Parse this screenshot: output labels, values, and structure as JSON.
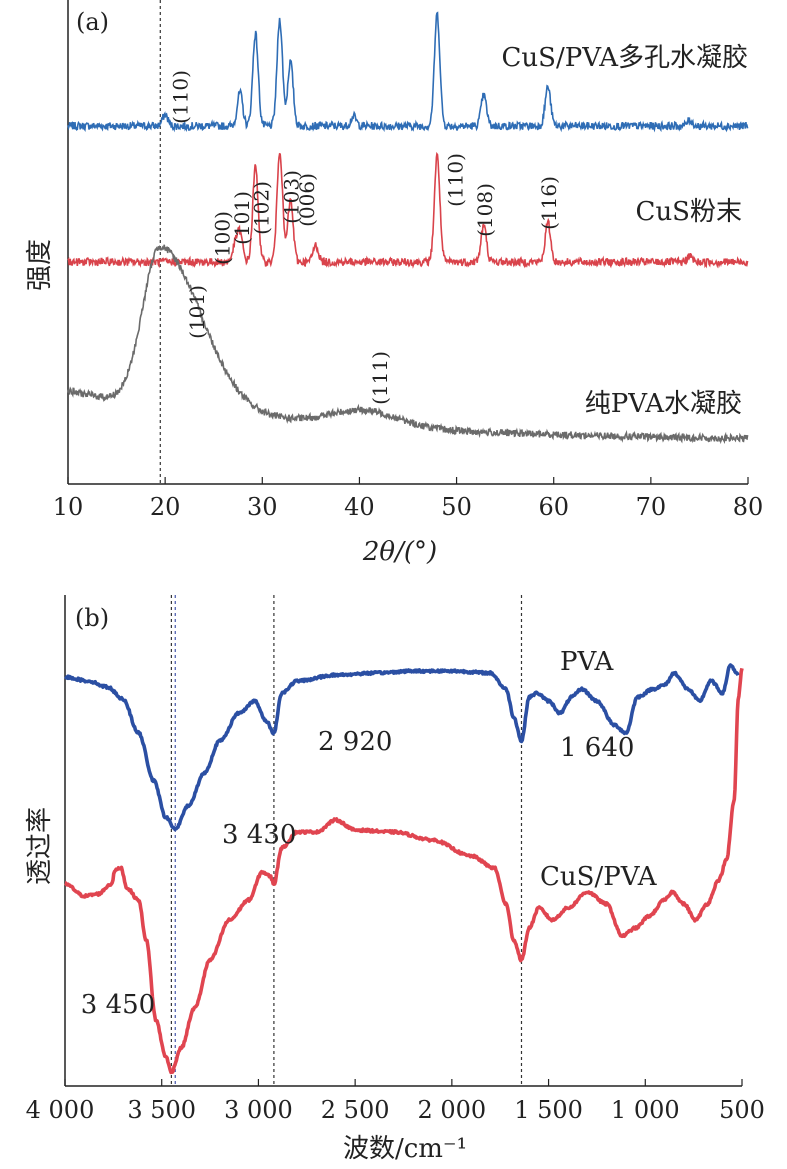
{
  "chart_data": [
    {
      "type": "line",
      "panel_label": "(a)",
      "xlabel": "2θ/(°)",
      "ylabel": "强度",
      "xlim": [
        10,
        80
      ],
      "xticks": [
        10,
        20,
        30,
        40,
        50,
        60,
        70,
        80
      ],
      "yticks_shown": false,
      "reference_lines_x": [
        19.5
      ],
      "series": [
        {
          "name": "CuS/PVA多孔水凝胶",
          "color": "#2f6db5",
          "peaks": [
            [
              20,
              0.4
            ],
            [
              27.7,
              1.2
            ],
            [
              29.3,
              3.3
            ],
            [
              31.8,
              3.8
            ],
            [
              32.9,
              2.3
            ],
            [
              39.4,
              0.35
            ],
            [
              48.0,
              4.0
            ],
            [
              52.8,
              1.1
            ],
            [
              59.4,
              1.4
            ],
            [
              74,
              0.2
            ]
          ],
          "annotations": [
            {
              "label": "(110)",
              "x": 21.5
            }
          ]
        },
        {
          "name": "CuS粉末",
          "color": "#d9434b",
          "peaks": [
            [
              27.2,
              0.55
            ],
            [
              27.7,
              1.0
            ],
            [
              29.3,
              3.4
            ],
            [
              31.8,
              4.0
            ],
            [
              32.9,
              2.2
            ],
            [
              35.5,
              0.6
            ],
            [
              48.0,
              3.8
            ],
            [
              52.8,
              1.3
            ],
            [
              59.4,
              1.4
            ],
            [
              74,
              0.2
            ]
          ],
          "annotations": [
            {
              "label": "(100)",
              "x": 25.8
            },
            {
              "label": "(101)",
              "x": 27.8
            },
            {
              "label": "(102)",
              "x": 29.8
            },
            {
              "label": "(103)",
              "x": 32.9
            },
            {
              "label": "(006)",
              "x": 34.5
            },
            {
              "label": "(110)",
              "x": 49.8
            },
            {
              "label": "(108)",
              "x": 52.8
            },
            {
              "label": "(116)",
              "x": 59.4
            }
          ]
        },
        {
          "name": "纯PVA水凝胶",
          "color": "#6b6b6b",
          "peaks": [
            [
              19.5,
              5.0
            ],
            [
              40.5,
              0.5
            ]
          ],
          "annotations": [
            {
              "label": "(101)",
              "x": 23.2
            },
            {
              "label": "(111)",
              "x": 42.0
            }
          ]
        }
      ]
    },
    {
      "type": "line",
      "panel_label": "(b)",
      "xlabel": "波数/cm⁻¹",
      "ylabel": "透过率",
      "xlim": [
        4000,
        500
      ],
      "xticks": [
        4000,
        3500,
        3000,
        2500,
        2000,
        1500,
        1000,
        500
      ],
      "xtick_labels": [
        "4 000",
        "3 500",
        "3 000",
        "2 500",
        "2 000",
        "1 500",
        "1 000",
        "500"
      ],
      "yticks_shown": false,
      "reference_lines_x": [
        3450,
        3430,
        2920,
        1640
      ],
      "series": [
        {
          "name": "PVA",
          "color": "#2b4fa3",
          "points": [
            [
              4000,
              0.0
            ],
            [
              3880,
              -0.1
            ],
            [
              3780,
              -0.25
            ],
            [
              3700,
              -0.55
            ],
            [
              3620,
              -1.4
            ],
            [
              3540,
              -2.6
            ],
            [
              3480,
              -3.5
            ],
            [
              3430,
              -3.8
            ],
            [
              3360,
              -3.2
            ],
            [
              3280,
              -2.4
            ],
            [
              3200,
              -1.6
            ],
            [
              3100,
              -0.9
            ],
            [
              3020,
              -0.6
            ],
            [
              2960,
              -1.1
            ],
            [
              2920,
              -1.4
            ],
            [
              2880,
              -0.4
            ],
            [
              2800,
              -0.1
            ],
            [
              2600,
              0.05
            ],
            [
              2400,
              0.1
            ],
            [
              2200,
              0.15
            ],
            [
              2000,
              0.15
            ],
            [
              1800,
              0.1
            ],
            [
              1720,
              -0.3
            ],
            [
              1680,
              -1.0
            ],
            [
              1640,
              -1.6
            ],
            [
              1600,
              -0.5
            ],
            [
              1560,
              -0.4
            ],
            [
              1500,
              -0.6
            ],
            [
              1440,
              -0.9
            ],
            [
              1380,
              -0.5
            ],
            [
              1330,
              -0.3
            ],
            [
              1250,
              -0.6
            ],
            [
              1160,
              -1.2
            ],
            [
              1100,
              -1.4
            ],
            [
              1040,
              -0.5
            ],
            [
              960,
              -0.3
            ],
            [
              900,
              -0.2
            ],
            [
              850,
              0.1
            ],
            [
              780,
              -0.3
            ],
            [
              720,
              -0.6
            ],
            [
              660,
              -0.1
            ],
            [
              600,
              -0.4
            ],
            [
              560,
              0.3
            ],
            [
              520,
              0.05
            ]
          ],
          "annotations": [
            {
              "label": "3 430",
              "x": 3430
            },
            {
              "label": "2 920",
              "x": 2920
            },
            {
              "label": "1 640",
              "x": 1640
            }
          ]
        },
        {
          "name": "CuS/PVA",
          "color": "#e04550",
          "points": [
            [
              4000,
              -0.1
            ],
            [
              3900,
              -0.4
            ],
            [
              3830,
              -0.35
            ],
            [
              3760,
              -0.1
            ],
            [
              3740,
              0.25
            ],
            [
              3710,
              0.3
            ],
            [
              3680,
              -0.2
            ],
            [
              3620,
              -0.5
            ],
            [
              3580,
              -1.5
            ],
            [
              3530,
              -3.5
            ],
            [
              3480,
              -4.4
            ],
            [
              3450,
              -4.8
            ],
            [
              3400,
              -4.2
            ],
            [
              3330,
              -3.2
            ],
            [
              3250,
              -2.0
            ],
            [
              3150,
              -1.0
            ],
            [
              3050,
              -0.5
            ],
            [
              2980,
              0.2
            ],
            [
              2940,
              0.1
            ],
            [
              2920,
              -0.1
            ],
            [
              2880,
              0.8
            ],
            [
              2800,
              1.2
            ],
            [
              2700,
              1.2
            ],
            [
              2600,
              1.5
            ],
            [
              2500,
              1.25
            ],
            [
              2300,
              1.2
            ],
            [
              2100,
              1.0
            ],
            [
              1900,
              0.6
            ],
            [
              1780,
              0.3
            ],
            [
              1720,
              -0.6
            ],
            [
              1680,
              -1.5
            ],
            [
              1640,
              -2.0
            ],
            [
              1600,
              -1.2
            ],
            [
              1550,
              -0.7
            ],
            [
              1480,
              -1.0
            ],
            [
              1400,
              -0.7
            ],
            [
              1300,
              -0.3
            ],
            [
              1200,
              -0.6
            ],
            [
              1120,
              -1.4
            ],
            [
              1050,
              -1.2
            ],
            [
              980,
              -0.9
            ],
            [
              900,
              -0.5
            ],
            [
              860,
              -0.3
            ],
            [
              800,
              -0.6
            ],
            [
              740,
              -1.0
            ],
            [
              680,
              -0.6
            ],
            [
              620,
              0.0
            ],
            [
              580,
              0.5
            ],
            [
              540,
              2.0
            ],
            [
              520,
              4.5
            ],
            [
              500,
              5.3
            ]
          ],
          "annotations": [
            {
              "label": "3 450",
              "x": 3450
            }
          ]
        }
      ]
    }
  ]
}
